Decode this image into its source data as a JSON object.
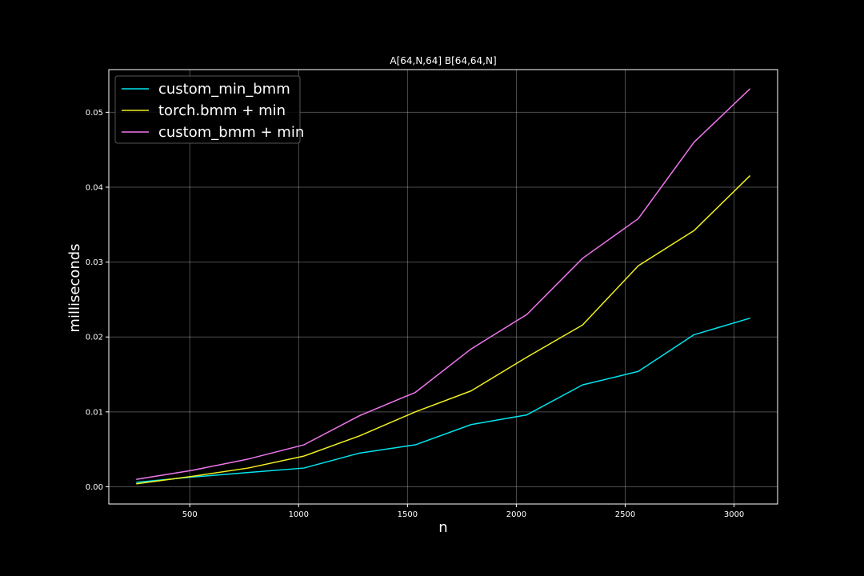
{
  "chart_data": {
    "type": "line",
    "title": "A[64,N,64] B[64,64,N]",
    "xlabel": "n",
    "ylabel": "milliseconds",
    "xlim": [
      128,
      3200
    ],
    "ylim": [
      -0.0023,
      0.0557
    ],
    "xticks": [
      500,
      1000,
      1500,
      2000,
      2500,
      3000
    ],
    "xtick_labels": [
      "500",
      "1000",
      "1500",
      "2000",
      "2500",
      "3000"
    ],
    "yticks": [
      0.0,
      0.01,
      0.02,
      0.03,
      0.04,
      0.05
    ],
    "ytick_labels": [
      "0.00",
      "0.01",
      "0.02",
      "0.03",
      "0.04",
      "0.05"
    ],
    "grid": true,
    "legend_position": "top-left",
    "background": "#000000",
    "x": [
      256,
      512,
      768,
      1024,
      1280,
      1536,
      1792,
      2048,
      2304,
      2560,
      2816,
      3072
    ],
    "series": [
      {
        "name": "custom_min_bmm",
        "color": "#00e5ee",
        "values": [
          0.0006,
          0.0013,
          0.0019,
          0.0025,
          0.0045,
          0.0056,
          0.0083,
          0.0096,
          0.0136,
          0.0154,
          0.0203,
          0.0225
        ]
      },
      {
        "name": "torch.bmm + min",
        "color": "#f0f020",
        "values": [
          0.0004,
          0.0014,
          0.0025,
          0.0041,
          0.0068,
          0.01,
          0.0128,
          0.0173,
          0.0216,
          0.0295,
          0.0342,
          0.0415
        ]
      },
      {
        "name": "custom_bmm + min",
        "color": "#ee77ee",
        "values": [
          0.001,
          0.0022,
          0.0037,
          0.0056,
          0.0095,
          0.0126,
          0.0184,
          0.023,
          0.0305,
          0.0358,
          0.046,
          0.0531
        ]
      }
    ]
  }
}
